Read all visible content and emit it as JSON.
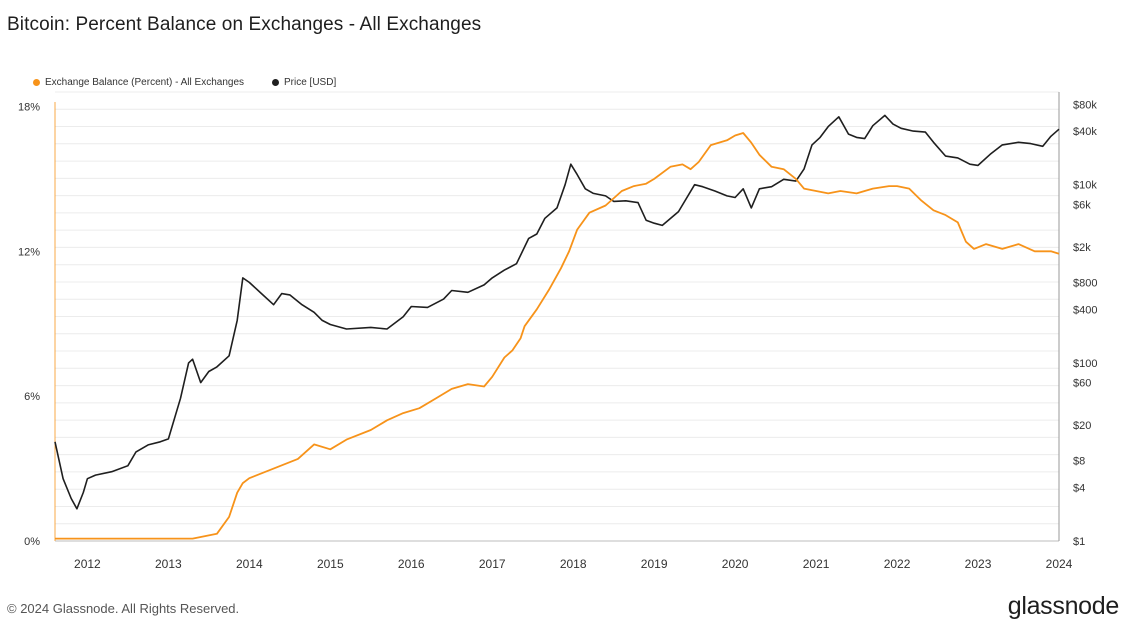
{
  "title": "Bitcoin: Percent Balance on Exchanges - All Exchanges",
  "footer": "© 2024 Glassnode. All Rights Reserved.",
  "brand": "glassnode",
  "colors": {
    "balance": "#f7931a",
    "price": "#1f1f1f",
    "grid": "#ececec",
    "axis_text": "#333333"
  },
  "chart_data": {
    "type": "line",
    "title": "Bitcoin: Percent Balance on Exchanges - All Exchanges",
    "legend_position": "top-left",
    "grid": true,
    "x_ticks": [
      "2012",
      "2013",
      "2014",
      "2015",
      "2016",
      "2017",
      "2018",
      "2019",
      "2020",
      "2021",
      "2022",
      "2023",
      "2024"
    ],
    "x_range": [
      2011.6,
      2024.0
    ],
    "y_left": {
      "ticks": [
        0,
        6,
        12,
        18
      ],
      "tick_labels": [
        "0%",
        "6%",
        "12%",
        "18%"
      ],
      "range": [
        0,
        18.6
      ]
    },
    "y_right": {
      "scale": "log",
      "ticks": [
        1,
        4,
        8,
        20,
        60,
        100,
        400,
        800,
        2000,
        6000,
        10000,
        40000,
        80000
      ],
      "tick_labels": [
        "$1",
        "$4",
        "$8",
        "$20",
        "$60",
        "$100",
        "$400",
        "$800",
        "$2k",
        "$6k",
        "$10k",
        "$40k",
        "$80k"
      ],
      "range": [
        1,
        110000
      ]
    },
    "series": [
      {
        "name": "Exchange Balance (Percent) - All Exchanges",
        "axis": "left",
        "x": [
          2011.6,
          2012.0,
          2012.5,
          2013.0,
          2013.3,
          2013.6,
          2013.75,
          2013.85,
          2013.92,
          2014.0,
          2014.3,
          2014.6,
          2014.8,
          2015.0,
          2015.2,
          2015.5,
          2015.7,
          2015.9,
          2016.1,
          2016.3,
          2016.5,
          2016.7,
          2016.9,
          2017.0,
          2017.15,
          2017.25,
          2017.35,
          2017.4,
          2017.55,
          2017.7,
          2017.85,
          2017.95,
          2018.05,
          2018.2,
          2018.4,
          2018.6,
          2018.75,
          2018.9,
          2019.0,
          2019.2,
          2019.35,
          2019.45,
          2019.55,
          2019.7,
          2019.9,
          2020.0,
          2020.1,
          2020.2,
          2020.3,
          2020.45,
          2020.6,
          2020.75,
          2020.85,
          2021.0,
          2021.15,
          2021.3,
          2021.5,
          2021.7,
          2021.9,
          2022.0,
          2022.15,
          2022.3,
          2022.45,
          2022.6,
          2022.75,
          2022.8,
          2022.85,
          2022.95,
          2023.1,
          2023.3,
          2023.5,
          2023.7,
          2023.9,
          2024.0
        ],
        "values": [
          0.1,
          0.1,
          0.1,
          0.1,
          0.1,
          0.3,
          1.0,
          2.0,
          2.4,
          2.6,
          3.0,
          3.4,
          4.0,
          3.8,
          4.2,
          4.6,
          5.0,
          5.3,
          5.5,
          5.9,
          6.3,
          6.5,
          6.4,
          6.8,
          7.6,
          7.9,
          8.4,
          8.9,
          9.6,
          10.4,
          11.3,
          12.0,
          12.9,
          13.6,
          13.9,
          14.5,
          14.7,
          14.8,
          15.0,
          15.5,
          15.6,
          15.4,
          15.7,
          16.4,
          16.6,
          16.8,
          16.9,
          16.5,
          16.0,
          15.5,
          15.4,
          15.0,
          14.6,
          14.5,
          14.4,
          14.5,
          14.4,
          14.6,
          14.7,
          14.7,
          14.6,
          14.1,
          13.7,
          13.5,
          13.2,
          12.8,
          12.4,
          12.1,
          12.3,
          12.1,
          12.3,
          12.0,
          12.0,
          11.9
        ]
      },
      {
        "name": "Price [USD]",
        "axis": "right",
        "x": [
          2011.6,
          2011.7,
          2011.8,
          2011.87,
          2011.95,
          2012.0,
          2012.1,
          2012.3,
          2012.5,
          2012.6,
          2012.75,
          2012.9,
          2013.0,
          2013.15,
          2013.25,
          2013.3,
          2013.4,
          2013.5,
          2013.6,
          2013.75,
          2013.85,
          2013.92,
          2014.0,
          2014.15,
          2014.3,
          2014.4,
          2014.5,
          2014.65,
          2014.8,
          2014.9,
          2015.0,
          2015.2,
          2015.5,
          2015.7,
          2015.9,
          2016.0,
          2016.2,
          2016.4,
          2016.5,
          2016.7,
          2016.9,
          2017.0,
          2017.15,
          2017.3,
          2017.45,
          2017.55,
          2017.65,
          2017.8,
          2017.9,
          2017.97,
          2018.05,
          2018.15,
          2018.25,
          2018.4,
          2018.5,
          2018.65,
          2018.8,
          2018.9,
          2019.0,
          2019.1,
          2019.3,
          2019.5,
          2019.6,
          2019.75,
          2019.9,
          2020.0,
          2020.1,
          2020.2,
          2020.3,
          2020.45,
          2020.6,
          2020.75,
          2020.85,
          2020.95,
          2021.05,
          2021.15,
          2021.28,
          2021.4,
          2021.5,
          2021.6,
          2021.7,
          2021.85,
          2021.95,
          2022.05,
          2022.2,
          2022.35,
          2022.45,
          2022.6,
          2022.75,
          2022.9,
          2023.0,
          2023.15,
          2023.3,
          2023.5,
          2023.65,
          2023.8,
          2023.9,
          2024.0
        ],
        "values": [
          13,
          5,
          3,
          2.3,
          3.5,
          5,
          5.5,
          6,
          7,
          10,
          12,
          13,
          14,
          40,
          100,
          110,
          60,
          80,
          90,
          120,
          300,
          900,
          800,
          600,
          450,
          600,
          580,
          450,
          370,
          300,
          270,
          240,
          250,
          240,
          330,
          430,
          420,
          520,
          650,
          620,
          750,
          900,
          1100,
          1300,
          2500,
          2800,
          4200,
          5500,
          10000,
          17000,
          13000,
          9000,
          8000,
          7500,
          6500,
          6600,
          6300,
          4000,
          3700,
          3500,
          5000,
          10000,
          9500,
          8500,
          7500,
          7200,
          9000,
          5500,
          9000,
          9500,
          11500,
          11000,
          15000,
          28000,
          34000,
          45000,
          58000,
          37000,
          34000,
          33000,
          46000,
          60000,
          48000,
          43000,
          40000,
          39000,
          30000,
          21000,
          20000,
          17000,
          16500,
          22000,
          28000,
          30000,
          29000,
          27000,
          35000,
          42000
        ]
      }
    ]
  }
}
